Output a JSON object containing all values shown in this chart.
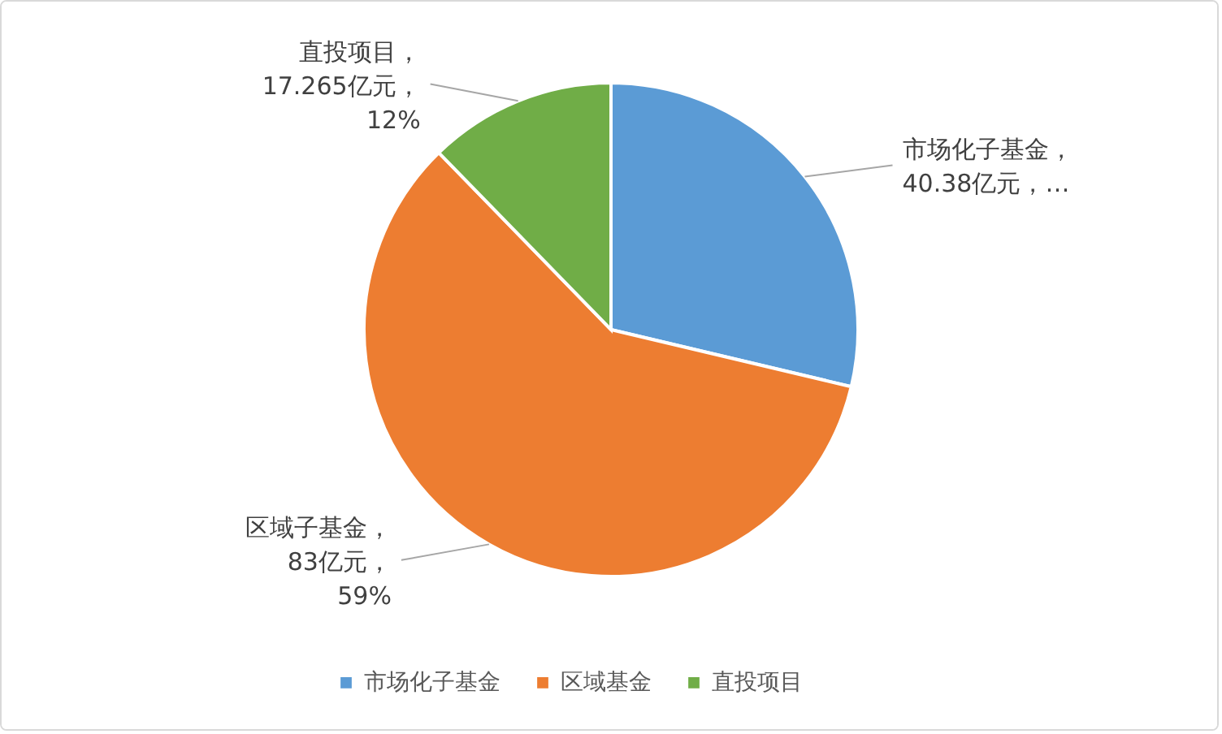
{
  "chart_data": {
    "type": "pie",
    "categories": [
      "市场化子基金",
      "区域基金",
      "直投项目"
    ],
    "values": [
      40.38,
      83,
      17.265
    ],
    "colors": [
      "#5b9bd5",
      "#ed7d31",
      "#70ad47"
    ],
    "value_labels": [
      "市场化子基金，40.38亿元，…",
      "区域子基金，83亿元，59%",
      "直投项目，17.265亿元，12%"
    ],
    "legend": "bottom"
  }
}
